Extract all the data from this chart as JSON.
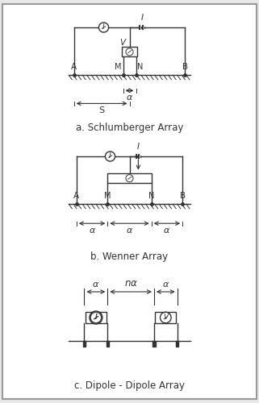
{
  "fig_width": 3.21,
  "fig_height": 5.0,
  "bg_color": "#e8e8e8",
  "panel_bg": "#ffffff",
  "line_color": "#333333",
  "title_a": "a. Schlumberger Array",
  "title_b": "b. Wenner Array",
  "title_c": "c. Dipole - Dipole Array",
  "font_size": 8.5,
  "border_color": "#999999"
}
